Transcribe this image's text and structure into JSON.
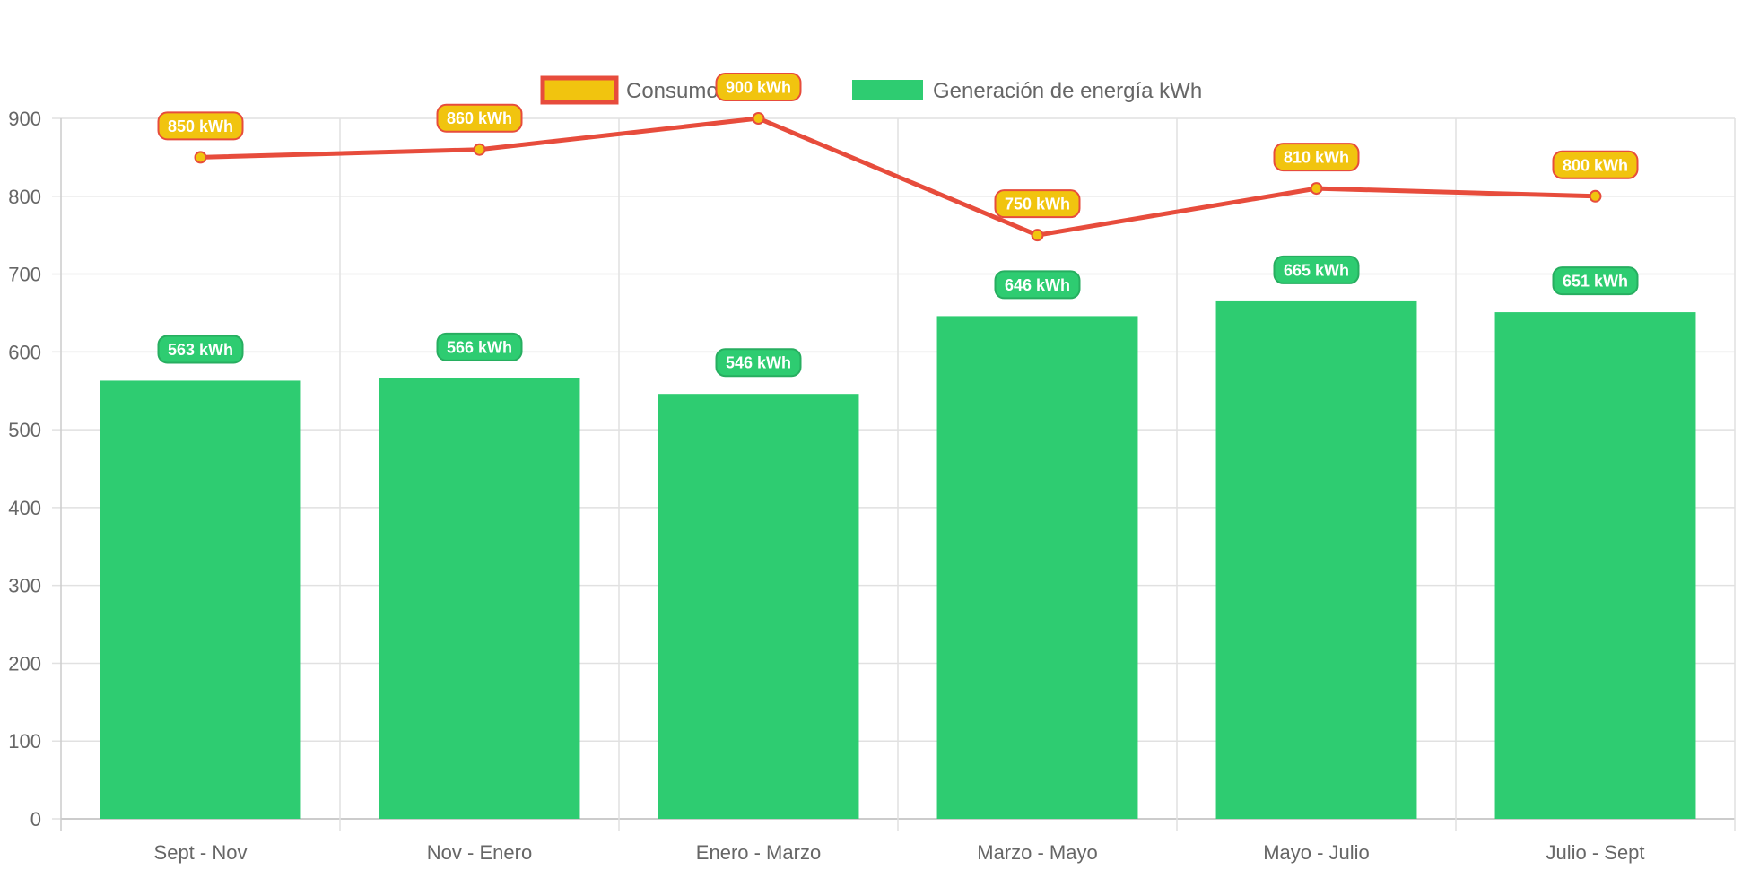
{
  "chart_data": {
    "type": "bar",
    "categories": [
      "Sept - Nov",
      "Nov - Enero",
      "Enero - Marzo",
      "Marzo - Mayo",
      "Mayo - Julio",
      "Julio - Sept"
    ],
    "series": [
      {
        "name": "Consumo kWh",
        "type": "line",
        "values": [
          850,
          860,
          900,
          750,
          810,
          800
        ],
        "labels": [
          "850 kWh",
          "860 kWh",
          "900 kWh",
          "750 kWh",
          "810 kWh",
          "800 kWh"
        ],
        "color": "#e74c3c",
        "fill": "#f1c40f"
      },
      {
        "name": "Generación de energía kWh",
        "type": "bar",
        "values": [
          563,
          566,
          546,
          646,
          665,
          651
        ],
        "labels": [
          "563 kWh",
          "566 kWh",
          "546 kWh",
          "646 kWh",
          "665 kWh",
          "651 kWh"
        ],
        "color": "#2ecc71",
        "border": "#27ae60"
      }
    ],
    "ylim": [
      0,
      900
    ],
    "yticks": [
      0,
      100,
      200,
      300,
      400,
      500,
      600,
      700,
      800,
      900
    ],
    "grid": true,
    "legend_position": "top",
    "title": "",
    "xlabel": "",
    "ylabel": ""
  }
}
